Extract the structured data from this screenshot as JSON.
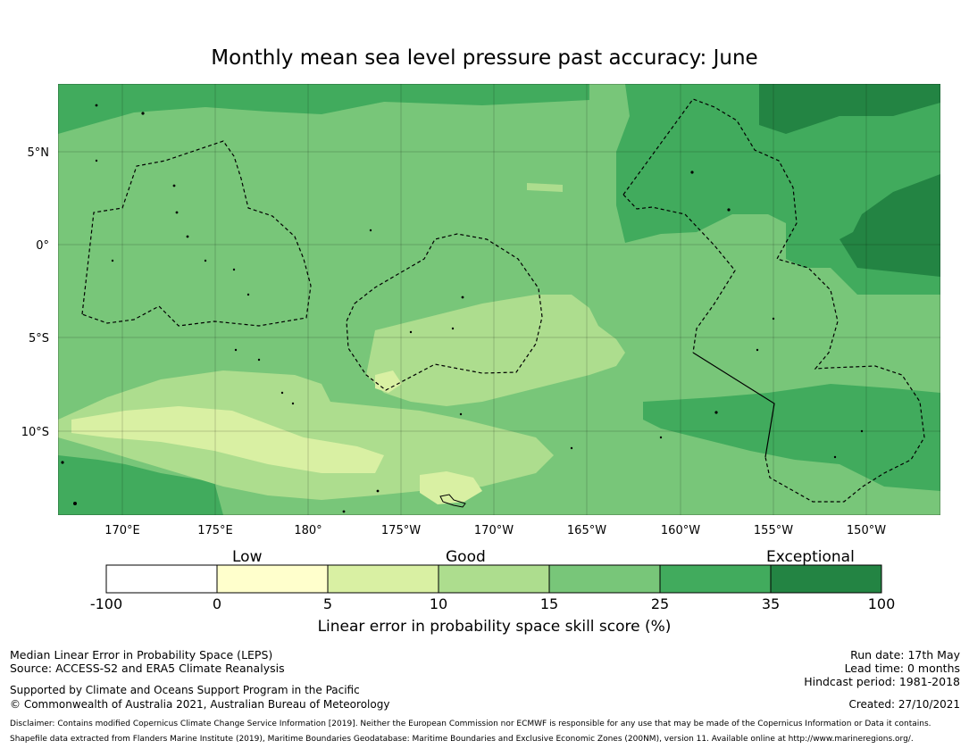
{
  "title": "Monthly mean sea level pressure past accuracy: June",
  "map": {
    "lon_labels": [
      "170°E",
      "175°E",
      "180°",
      "175°W",
      "170°W",
      "165°W",
      "160°W",
      "155°W",
      "150°W"
    ],
    "lat_labels": [
      "5°N",
      "0°",
      "5°S",
      "10°S"
    ],
    "colors": {
      "c0": "#ffffff",
      "c1": "#ffffcc",
      "c2": "#d9f0a3",
      "c3": "#addd8e",
      "c4": "#78c679",
      "c5": "#41ab5d",
      "c6": "#238443"
    }
  },
  "colorbar": {
    "categories": [
      "Low",
      "Good",
      "Exceptional"
    ],
    "ticks": [
      "-100",
      "0",
      "5",
      "10",
      "15",
      "25",
      "35",
      "100"
    ],
    "label": "Linear error in probability space skill score (%)"
  },
  "footer": {
    "left1": "Median Linear Error in Probability Space (LEPS)",
    "left2": "Source: ACCESS-S2 and ERA5 Climate Reanalysis",
    "left3": "Supported by Climate and Oceans Support Program in the Pacific",
    "left4": "© Commonwealth of Australia 2021, Australian Bureau of Meteorology",
    "right1": "Run date: 17th May",
    "right2": "Lead time: 0 months",
    "right3": "Hindcast period: 1981-2018",
    "created": "Created: 27/10/2021",
    "disclaimer": "Disclaimer: Contains modified Copernicus Climate Change Service Information [2019]. Neither the European Commission nor ECMWF is responsible for any use that may be made of the Copernicus Information or Data it contains.",
    "shapefile": "Shapefile data extracted from Flanders Marine Institute (2019), Maritime Boundaries Geodatabase: Maritime Boundaries and Exclusive Economic Zones (200NM), version 11. Available online at http://www.marineregions.org/."
  }
}
